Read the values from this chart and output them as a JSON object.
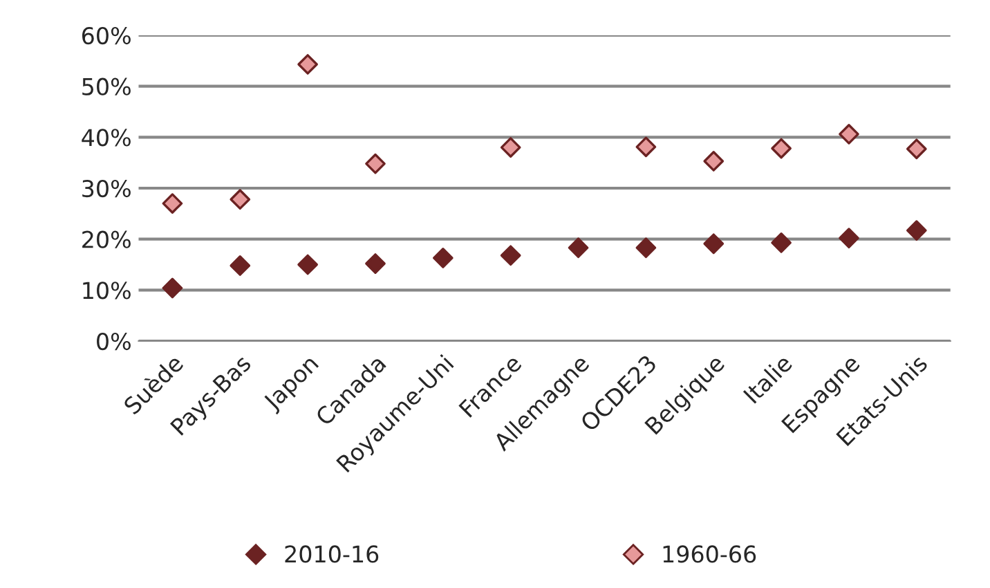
{
  "chart_data": {
    "type": "scatter",
    "categories": [
      "Suède",
      "Pays-Bas",
      "Japon",
      "Canada",
      "Royaume-Uni",
      "France",
      "Allemagne",
      "OCDE23",
      "Belgique",
      "Italie",
      "Espagne",
      "Etats-Unis"
    ],
    "series": [
      {
        "name": "2010-16",
        "color": "#6b2222",
        "values": [
          10.4,
          14.8,
          15.0,
          15.2,
          16.3,
          16.8,
          18.3,
          18.3,
          19.1,
          19.3,
          20.2,
          21.7
        ]
      },
      {
        "name": "1960-66",
        "color": "#e6999a",
        "values": [
          27.0,
          27.8,
          54.3,
          34.8,
          null,
          38.0,
          null,
          38.1,
          35.3,
          37.8,
          40.6,
          37.7
        ]
      }
    ],
    "ylim": [
      0,
      60
    ],
    "yticks": [
      {
        "value": 0,
        "label": "0%"
      },
      {
        "value": 10,
        "label": "10%"
      },
      {
        "value": 20,
        "label": "20%"
      },
      {
        "value": 30,
        "label": "30%"
      },
      {
        "value": 40,
        "label": "40%"
      },
      {
        "value": 50,
        "label": "50%"
      },
      {
        "value": 60,
        "label": "60%"
      }
    ],
    "grid": "y",
    "legend": "bottom",
    "marker": "diamond"
  }
}
